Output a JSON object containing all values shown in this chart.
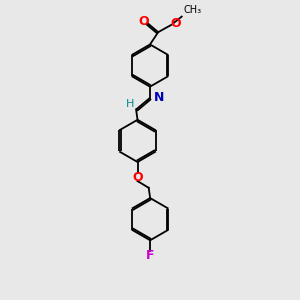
{
  "bg_color": "#e8e8e8",
  "bond_color": "#000000",
  "O_color": "#ff0000",
  "N_color": "#0000bb",
  "F_color": "#cc00cc",
  "H_color": "#008888",
  "lw": 1.3,
  "dbo": 0.055,
  "r": 0.72,
  "fig_w": 3.0,
  "fig_h": 3.0,
  "xlim": [
    0,
    6
  ],
  "ylim": [
    0,
    10
  ]
}
